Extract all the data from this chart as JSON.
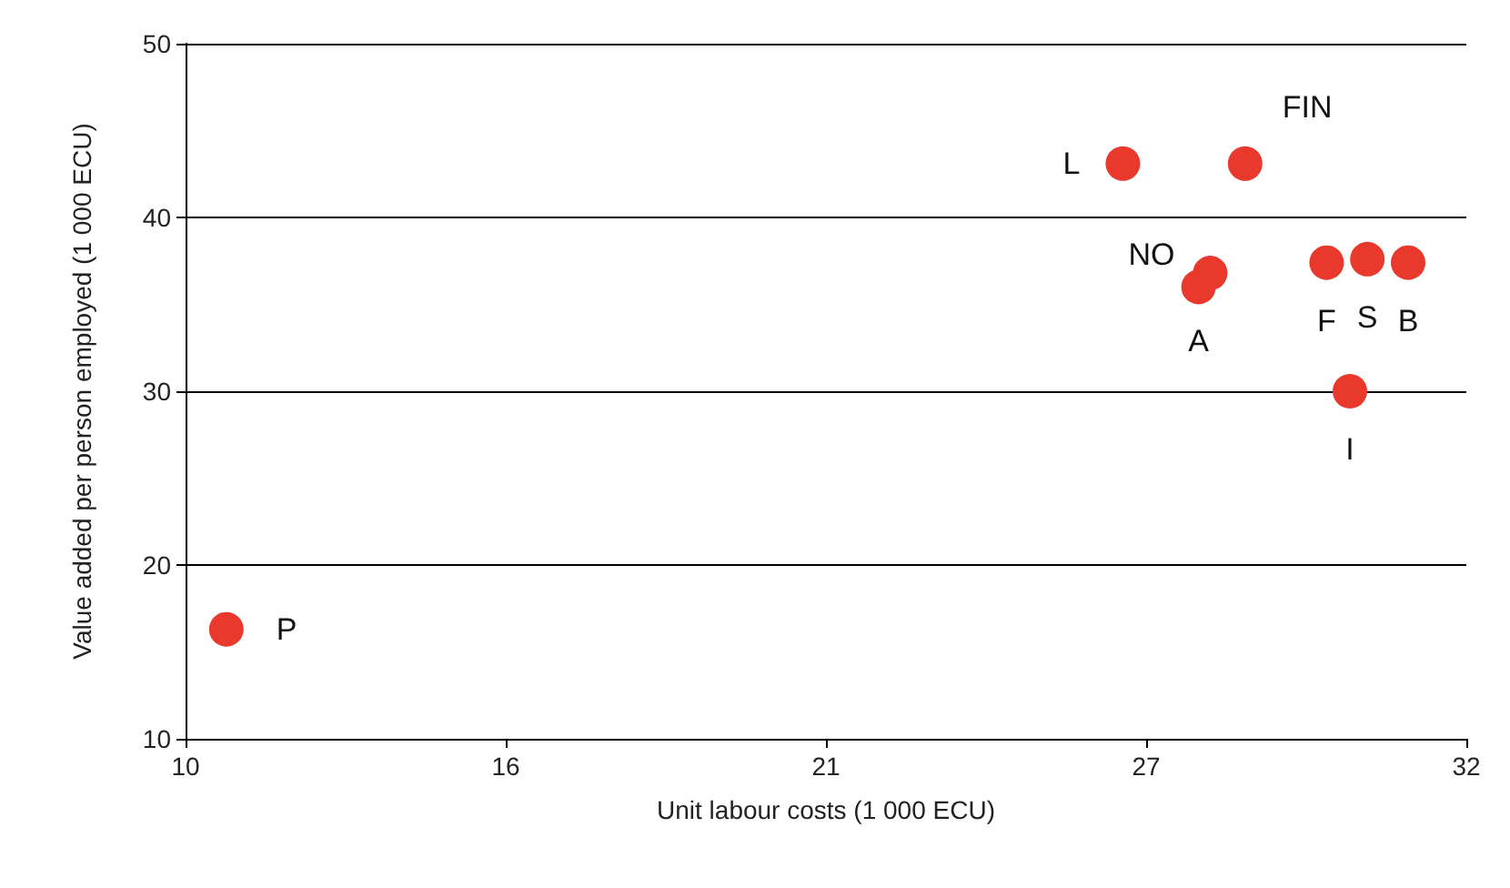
{
  "chart_data": {
    "type": "scatter",
    "xlabel": "Unit labour costs (1 000 ECU)",
    "ylabel": "Value added per person employed (1 000 ECU)",
    "xlim": [
      10,
      32
    ],
    "xticks": [
      10,
      {
        "value": 15.5,
        "label": "16"
      },
      21,
      {
        "value": 26.5,
        "label": "27"
      },
      32
    ],
    "ylim": [
      10,
      50
    ],
    "yticks": [
      10,
      20,
      30,
      40,
      50
    ],
    "grid": "y",
    "legend": false,
    "marker": "circle",
    "series": [
      {
        "name": "L",
        "color": "#e8392c",
        "x": [
          26.1
        ],
        "values": [
          43.1
        ]
      },
      {
        "name": "FIN",
        "color": "#e8392c",
        "x": [
          28.2
        ],
        "values": [
          43.1
        ]
      },
      {
        "name": "NO",
        "color": "#e8392c",
        "x": [
          27.6
        ],
        "values": [
          36.8
        ]
      },
      {
        "name": "A",
        "color": "#e8392c",
        "x": [
          27.4
        ],
        "values": [
          36.0
        ]
      },
      {
        "name": "F",
        "color": "#e8392c",
        "x": [
          29.6
        ],
        "values": [
          37.4
        ]
      },
      {
        "name": "S",
        "color": "#e8392c",
        "x": [
          30.3
        ],
        "values": [
          37.6
        ]
      },
      {
        "name": "B",
        "color": "#e8392c",
        "x": [
          31.0
        ],
        "values": [
          37.4
        ]
      },
      {
        "name": "I",
        "color": "#e8392c",
        "x": [
          30.0
        ],
        "values": [
          30.0
        ]
      },
      {
        "name": "P",
        "color": "#e8392c",
        "x": [
          10.7
        ],
        "values": [
          16.3
        ]
      }
    ]
  }
}
